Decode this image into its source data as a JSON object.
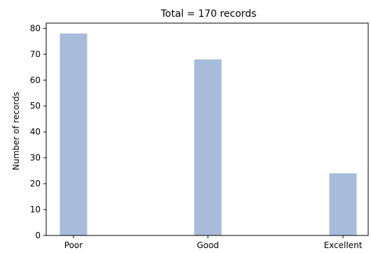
{
  "chart_data": {
    "type": "bar",
    "title": "Total = 170 records",
    "xlabel": "",
    "ylabel": "Number of records",
    "categories": [
      "Poor",
      "Good",
      "Excellent"
    ],
    "values": [
      78,
      68,
      24
    ],
    "ylim": [
      0,
      82
    ],
    "yticks": [
      0,
      10,
      20,
      30,
      40,
      50,
      60,
      70,
      80
    ],
    "grid": false,
    "legend": "none",
    "bar_color": "#a7bbda"
  }
}
